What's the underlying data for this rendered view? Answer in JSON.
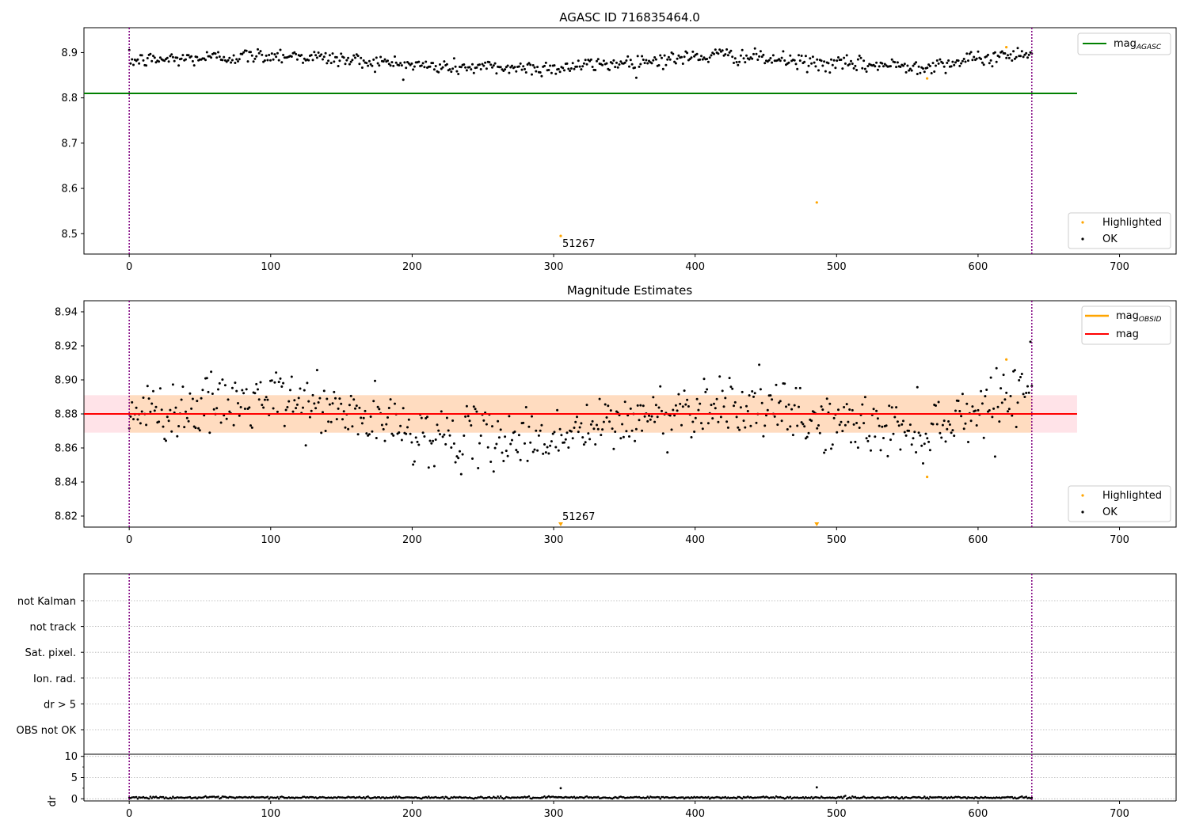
{
  "figure": {
    "title_top": "AGASC ID 716835464.0",
    "title_mid": "Magnitude Estimates",
    "annotation": "51267"
  },
  "colors": {
    "ok": "#000000",
    "highlighted": "#ffa500",
    "mag_agasc": "#008000",
    "mag": "#ff0000",
    "mag_obsid": "#ffa500",
    "band_outer": "#ffc0cb",
    "band_inner": "#ffdab9",
    "boundary": "#800080",
    "grid": "#b0b0b0"
  },
  "chart_data": [
    {
      "type": "scatter",
      "panel": "top",
      "title": "AGASC ID 716835464.0",
      "xlim": [
        -32,
        740
      ],
      "ylim": [
        8.455,
        8.955
      ],
      "xticks": [
        0,
        100,
        200,
        300,
        400,
        500,
        600,
        700
      ],
      "yticks": [
        8.5,
        8.6,
        8.7,
        8.8,
        8.9
      ],
      "ok_series": {
        "name": "OK",
        "n": 640,
        "x_range": [
          0,
          638
        ],
        "y_baseline": 8.88,
        "y_trend": [
          [
            0,
            8.882
          ],
          [
            110,
            8.895
          ],
          [
            220,
            8.868
          ],
          [
            300,
            8.866
          ],
          [
            420,
            8.895
          ],
          [
            490,
            8.875
          ],
          [
            560,
            8.87
          ],
          [
            600,
            8.885
          ],
          [
            638,
            8.902
          ]
        ]
      },
      "highlighted": {
        "name": "Highlighted",
        "points": [
          [
            305,
            8.495
          ],
          [
            486,
            8.569
          ],
          [
            564,
            8.843
          ],
          [
            620,
            8.912
          ]
        ]
      },
      "mag_agasc": {
        "name": "mag",
        "subscript": "AGASC",
        "value": 8.81,
        "x_range": [
          -32,
          670
        ]
      },
      "vlines": [
        0,
        638
      ],
      "annotation": {
        "text": "51267",
        "x": 305,
        "y": 8.495
      },
      "legends": {
        "upper_right": [
          "mag_AGASC"
        ],
        "lower_right": [
          "Highlighted",
          "OK"
        ]
      }
    },
    {
      "type": "scatter",
      "panel": "middle",
      "title": "Magnitude Estimates",
      "xlim": [
        -32,
        740
      ],
      "ylim": [
        8.8135,
        8.9465
      ],
      "xticks": [
        0,
        100,
        200,
        300,
        400,
        500,
        600,
        700
      ],
      "yticks": [
        8.82,
        8.84,
        8.86,
        8.88,
        8.9,
        8.92,
        8.94
      ],
      "ok_series": {
        "name": "OK",
        "n": 640,
        "x_range": [
          0,
          638
        ],
        "y_mean": 8.88,
        "y_trend": [
          [
            0,
            8.88
          ],
          [
            110,
            8.889
          ],
          [
            220,
            8.866
          ],
          [
            300,
            8.866
          ],
          [
            420,
            8.888
          ],
          [
            490,
            8.875
          ],
          [
            560,
            8.87
          ],
          [
            600,
            8.883
          ],
          [
            638,
            8.898
          ]
        ]
      },
      "highlighted": {
        "name": "Highlighted",
        "points": [
          [
            305,
            8.815
          ],
          [
            486,
            8.815
          ],
          [
            564,
            8.843
          ],
          [
            620,
            8.912
          ]
        ]
      },
      "mag": {
        "name": "mag",
        "value": 8.88,
        "x_range": [
          -32,
          670
        ]
      },
      "mag_obsid": {
        "name": "mag",
        "subscript": "OBSID",
        "value": 8.88,
        "x_range": [
          0,
          638
        ]
      },
      "band_outer": [
        8.869,
        8.891
      ],
      "band_inner": [
        8.869,
        8.891
      ],
      "vlines": [
        0,
        638
      ],
      "annotation": {
        "text": "51267",
        "x": 305,
        "y": 8.815
      },
      "legends": {
        "upper_right": [
          "mag_OBSID",
          "mag"
        ],
        "lower_right": [
          "Highlighted",
          "OK"
        ]
      }
    },
    {
      "type": "scatter",
      "panel": "flags",
      "categories": [
        "not Kalman",
        "not track",
        "Sat. pixel.",
        "Ion. rad.",
        "dr > 5",
        "OBS not OK"
      ],
      "grid": true,
      "vlines": [
        0,
        638
      ]
    },
    {
      "type": "scatter",
      "panel": "dr",
      "ylabel": "dr",
      "xlim": [
        -32,
        740
      ],
      "ylim": [
        -0.5,
        10.5
      ],
      "xticks": [
        0,
        100,
        200,
        300,
        400,
        500,
        600,
        700
      ],
      "yticks": [
        0,
        5,
        10
      ],
      "ok_series": {
        "n": 640,
        "x_range": [
          0,
          638
        ],
        "y_typical": 0.3
      },
      "outliers": [
        [
          305,
          2.5
        ],
        [
          486,
          2.7
        ]
      ],
      "vlines": [
        0,
        638
      ]
    }
  ],
  "legends": {
    "mag_label": "mag",
    "agasc_sub": "AGASC",
    "obsid_sub": "OBSID",
    "highlighted": "Highlighted",
    "ok": "OK"
  },
  "flag_labels": [
    "not Kalman",
    "not track",
    "Sat. pixel.",
    "Ion. rad.",
    "dr > 5",
    "OBS not OK"
  ],
  "dr_label": "dr"
}
